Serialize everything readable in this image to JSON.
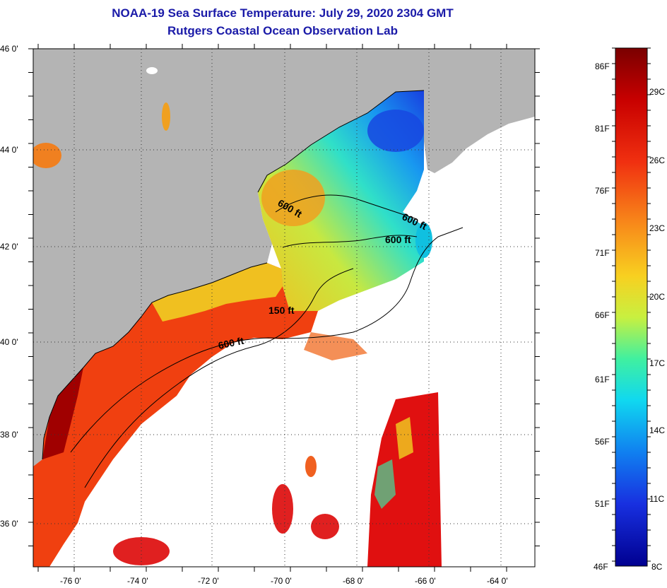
{
  "title": "NOAA-19 Sea Surface Temperature:  July 29, 2020 2304 GMT",
  "subtitle": "Rutgers Coastal Ocean Observation Lab",
  "lat_labels": [
    "46 0'",
    "44 0'",
    "42 0'",
    "40 0'",
    "38 0'",
    "36 0'"
  ],
  "lon_labels": [
    "-76 0'",
    "-74 0'",
    "-72 0'",
    "-70 0'",
    "-68 0'",
    "-66 0'",
    "-64 0'"
  ],
  "contour_labels": [
    "600 ft",
    "600 ft",
    "600 ft",
    "150 ft",
    "600 ft"
  ],
  "colorbar": {
    "fahrenheit": [
      "86F",
      "81F",
      "76F",
      "71F",
      "66F",
      "61F",
      "56F",
      "51F",
      "46F"
    ],
    "celsius": [
      "29C",
      "26C",
      "23C",
      "20C",
      "17C",
      "14C",
      "11C",
      "8C"
    ],
    "range_f": [
      46,
      88
    ]
  },
  "colors": {
    "land": "#b4b4b4",
    "title": "#1a1aa8",
    "cloud": "#ffffff"
  }
}
